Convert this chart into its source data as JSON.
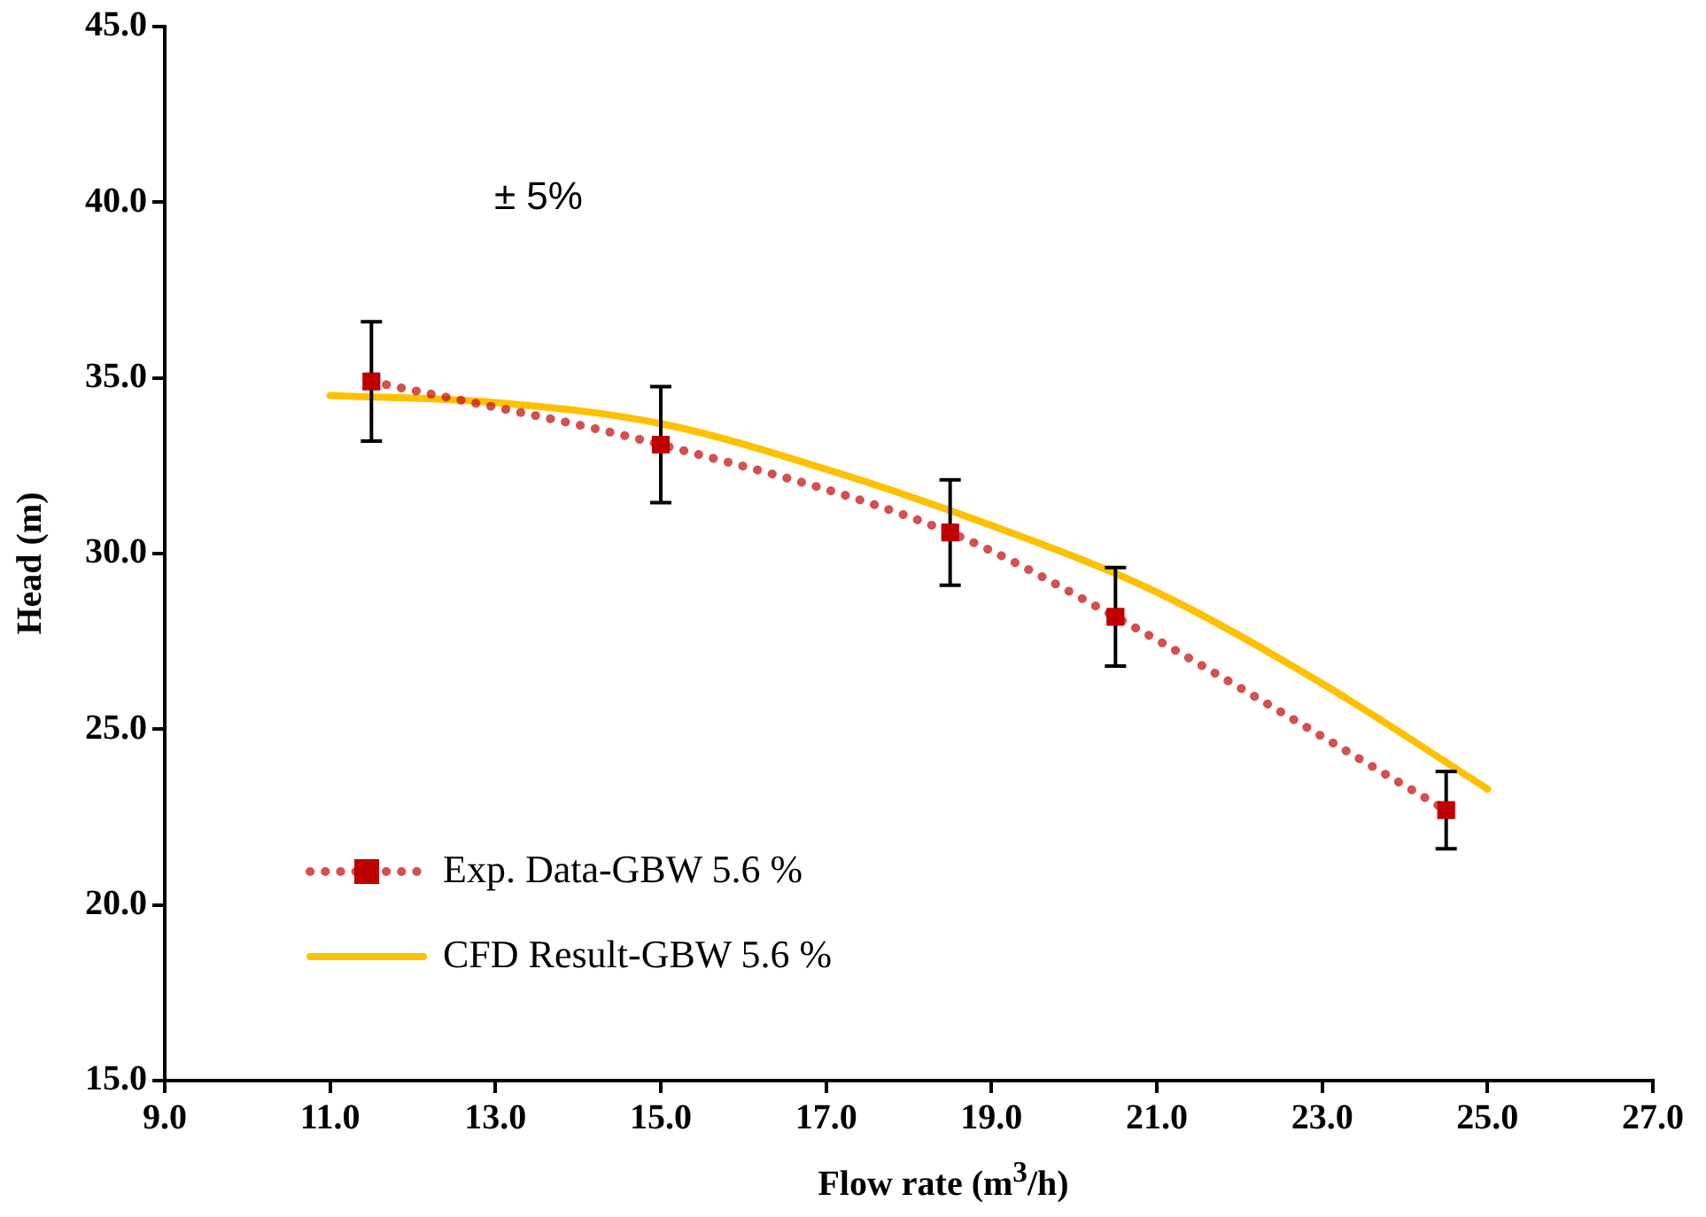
{
  "chart_data": {
    "type": "line",
    "xlabel": "Flow rate (m$^{3}$/h)",
    "ylabel": "Head (m)",
    "xlim": [
      9,
      27
    ],
    "xticks": [
      {
        "value": 9,
        "label": "9.0"
      },
      {
        "value": 11,
        "label": "11.0"
      },
      {
        "value": 13,
        "label": "13.0"
      },
      {
        "value": 15,
        "label": "15.0"
      },
      {
        "value": 17,
        "label": "17.0"
      },
      {
        "value": 19,
        "label": "19.0"
      },
      {
        "value": 21,
        "label": "21.0"
      },
      {
        "value": 23,
        "label": "23.0"
      },
      {
        "value": 25,
        "label": "25.0"
      },
      {
        "value": 27,
        "label": "27.0"
      }
    ],
    "ylim": [
      15,
      45
    ],
    "yticks": [
      {
        "value": 15,
        "label": "15.0"
      },
      {
        "value": 20,
        "label": "20.0"
      },
      {
        "value": 25,
        "label": "25.0"
      },
      {
        "value": 30,
        "label": "30.0"
      },
      {
        "value": 35,
        "label": "35.0"
      },
      {
        "value": 40,
        "label": "40.0"
      },
      {
        "value": 45,
        "label": "45.0"
      }
    ],
    "grid": false,
    "legend": "bottom left",
    "annotations": [
      "± 5%"
    ],
    "series": [
      {
        "name": "Exp. Data-GBW 5.6 %",
        "color": "#c00000",
        "marker": "square",
        "line_style": "dotted",
        "x": [
          11.5,
          15,
          18.5,
          20.5,
          24.5
        ],
        "values": [
          34.9,
          33.1,
          30.6,
          28.2,
          22.7
        ],
        "errors": [
          1.7,
          1.65,
          1.5,
          1.4,
          1.1
        ]
      },
      {
        "name": "CFD Result-GBW 5.6 %",
        "color": "#ffc000",
        "marker": "none",
        "line_style": "solid",
        "x": [
          11,
          13,
          15,
          17,
          19,
          21,
          23,
          25
        ],
        "values": [
          34.5,
          34.3,
          33.7,
          32.4,
          30.8,
          28.9,
          26.3,
          23.3
        ]
      }
    ]
  }
}
